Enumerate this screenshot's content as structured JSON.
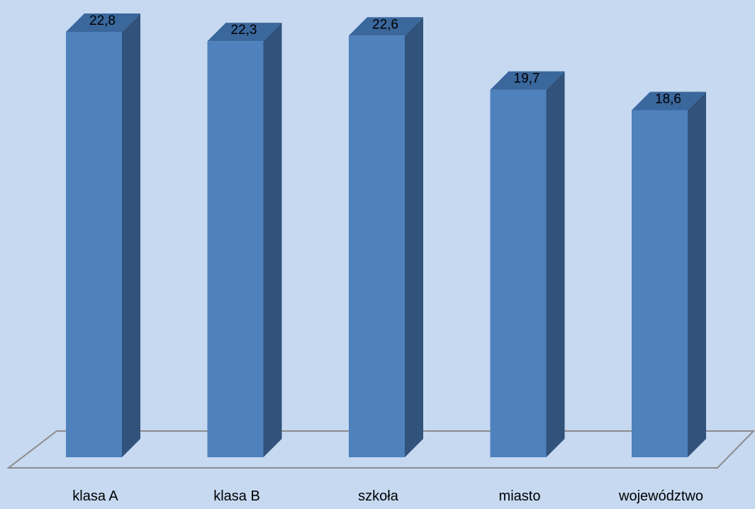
{
  "chart_data": {
    "type": "bar",
    "style": "3d-column",
    "categories": [
      "klasa A",
      "klasa B",
      "szkoła",
      "miasto",
      "województwo"
    ],
    "values": [
      "22,8",
      "22,3",
      "22,6",
      "19,7",
      "18,6"
    ],
    "values_numeric": [
      22.8,
      22.3,
      22.6,
      19.7,
      18.6
    ],
    "title": "",
    "xlabel": "",
    "ylabel": "",
    "ylim": [
      0,
      22.8
    ],
    "grid": false,
    "legend": "none",
    "data_labels": true
  },
  "colors": {
    "background": "#c6d9f1",
    "bar_front": "#4f81bd",
    "bar_side": "#31527a",
    "bar_top": "#3a679c",
    "floor_line": "#8c8c8c"
  }
}
